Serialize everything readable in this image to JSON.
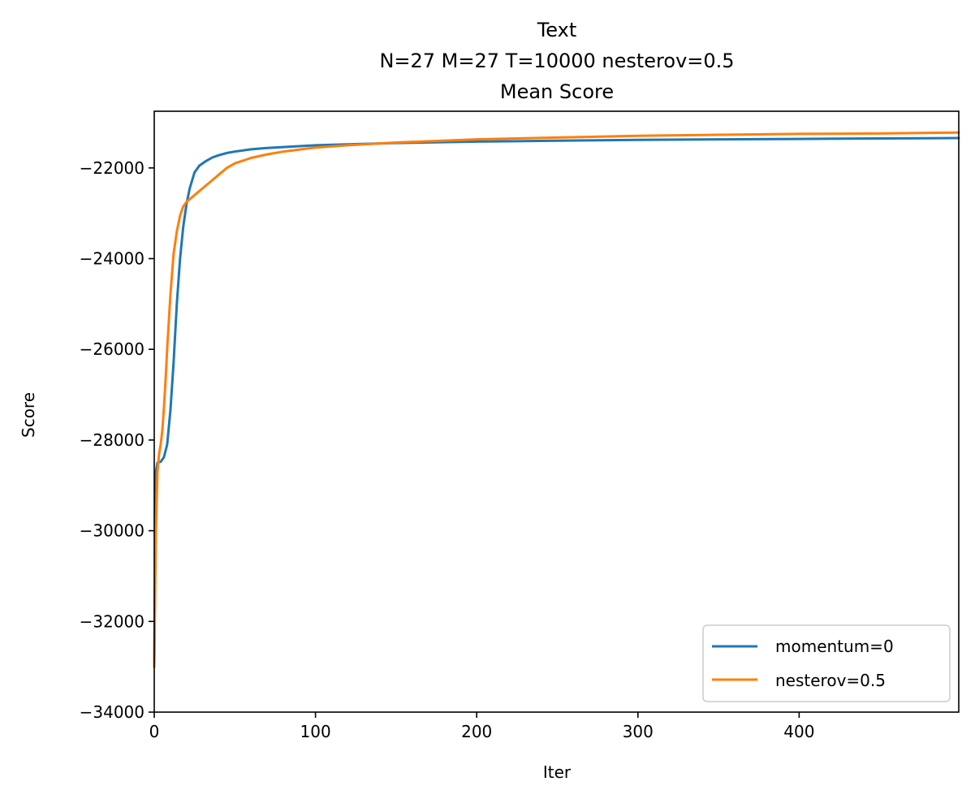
{
  "title_lines": [
    "Text",
    "N=27 M=27 T=10000 nesterov=0.5",
    "Mean Score"
  ],
  "chart_data": {
    "type": "line",
    "title": "Text\nN=27 M=27 T=10000 nesterov=0.5\nMean Score",
    "xlabel": "Iter",
    "ylabel": "Score",
    "xlim": [
      0,
      499
    ],
    "ylim": [
      -34000,
      -20750
    ],
    "xticks": [
      0,
      100,
      200,
      300,
      400
    ],
    "yticks": [
      -34000,
      -32000,
      -30000,
      -28000,
      -26000,
      -24000,
      -22000
    ],
    "xtick_labels": [
      "0",
      "100",
      "200",
      "300",
      "400"
    ],
    "ytick_labels": [
      "−34000",
      "−32000",
      "−30000",
      "−28000",
      "−26000",
      "−24000",
      "−22000"
    ],
    "grid": false,
    "legend": "lower-right",
    "series": [
      {
        "name": "momentum=0",
        "color": "#1f77b4",
        "x": [
          0,
          1,
          2,
          4,
          6,
          8,
          10,
          12,
          14,
          16,
          18,
          20,
          22,
          25,
          28,
          32,
          36,
          40,
          45,
          50,
          60,
          70,
          80,
          100,
          120,
          150,
          200,
          250,
          300,
          350,
          400,
          450,
          499
        ],
        "y": [
          -33000,
          -28700,
          -28500,
          -28480,
          -28380,
          -28100,
          -27350,
          -26300,
          -25000,
          -24000,
          -23300,
          -22800,
          -22450,
          -22100,
          -21950,
          -21850,
          -21770,
          -21720,
          -21670,
          -21640,
          -21590,
          -21560,
          -21540,
          -21500,
          -21480,
          -21450,
          -21420,
          -21400,
          -21380,
          -21370,
          -21360,
          -21350,
          -21340
        ]
      },
      {
        "name": "nesterov=0.5",
        "color": "#ff7f0e",
        "x": [
          0,
          1,
          2,
          3,
          4,
          5,
          6,
          7,
          8,
          10,
          12,
          14,
          16,
          18,
          20,
          25,
          30,
          35,
          40,
          45,
          50,
          60,
          70,
          80,
          100,
          120,
          150,
          200,
          250,
          300,
          350,
          400,
          450,
          499
        ],
        "y": [
          -33000,
          -30000,
          -28700,
          -28300,
          -28100,
          -27800,
          -27300,
          -26700,
          -26000,
          -24800,
          -23900,
          -23400,
          -23050,
          -22850,
          -22750,
          -22600,
          -22450,
          -22300,
          -22150,
          -22000,
          -21900,
          -21780,
          -21700,
          -21640,
          -21550,
          -21500,
          -21440,
          -21370,
          -21330,
          -21290,
          -21270,
          -21250,
          -21240,
          -21220
        ]
      }
    ]
  }
}
